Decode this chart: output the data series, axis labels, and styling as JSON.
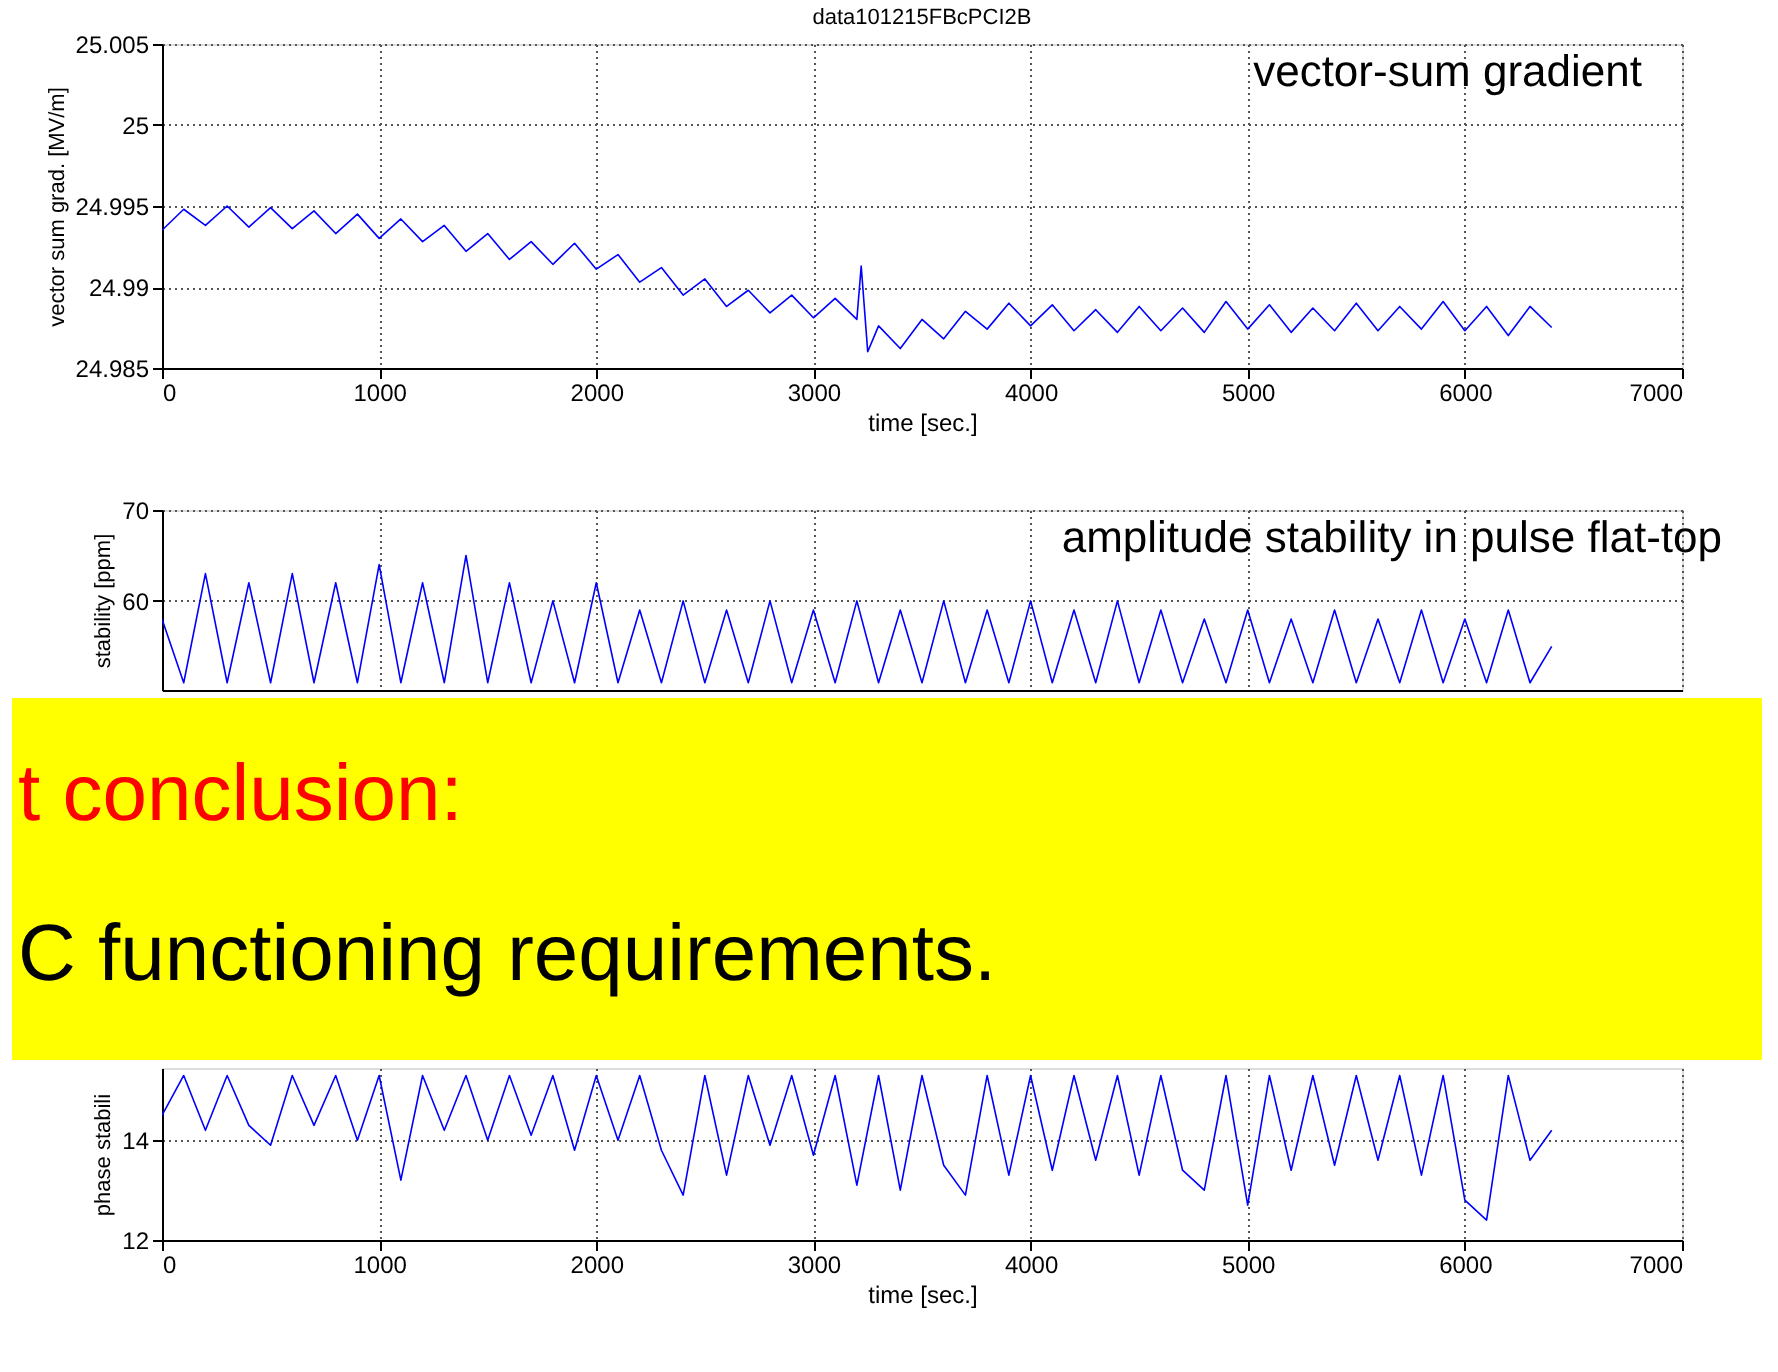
{
  "chart_data": [
    {
      "type": "line",
      "title": "data101215FBcPCI2B",
      "xlabel": "time [sec.]",
      "ylabel": "vector sum grad. [MV/m]",
      "annotations": [
        "vector-sum gradient"
      ],
      "xlim": [
        0,
        7000
      ],
      "xticks": [
        0,
        1000,
        2000,
        3000,
        4000,
        5000,
        6000,
        7000
      ],
      "ylim": [
        24.985,
        25.005
      ],
      "yticks": [
        24.985,
        24.99,
        24.995,
        25,
        25.005
      ],
      "grid": true,
      "line_style": "solid",
      "x": [
        0,
        100,
        200,
        300,
        400,
        500,
        600,
        700,
        800,
        900,
        1000,
        1100,
        1200,
        1300,
        1400,
        1500,
        1600,
        1700,
        1800,
        1900,
        2000,
        2100,
        2200,
        2300,
        2400,
        2500,
        2600,
        2700,
        2800,
        2900,
        3000,
        3100,
        3200,
        3220,
        3250,
        3300,
        3400,
        3500,
        3600,
        3700,
        3800,
        3900,
        4000,
        4100,
        4200,
        4300,
        4400,
        4500,
        4600,
        4700,
        4800,
        4900,
        5000,
        5100,
        5200,
        5300,
        5400,
        5500,
        5600,
        5700,
        5800,
        5900,
        6000,
        6100,
        6200,
        6300,
        6400
      ],
      "series": [
        {
          "color": "#0000ff",
          "values": [
            24.9935,
            24.9948,
            24.9938,
            24.995,
            24.9937,
            24.9949,
            24.9936,
            24.9947,
            24.9933,
            24.9945,
            24.993,
            24.9942,
            24.9928,
            24.9938,
            24.9922,
            24.9933,
            24.9917,
            24.9928,
            24.9914,
            24.9927,
            24.9911,
            24.992,
            24.9903,
            24.9912,
            24.9895,
            24.9905,
            24.9888,
            24.9898,
            24.9884,
            24.9895,
            24.9881,
            24.9893,
            24.988,
            24.9913,
            24.986,
            24.9876,
            24.9862,
            24.988,
            24.9868,
            24.9885,
            24.9874,
            24.989,
            24.9876,
            24.9889,
            24.9873,
            24.9886,
            24.9872,
            24.9888,
            24.9873,
            24.9887,
            24.9872,
            24.9891,
            24.9874,
            24.9889,
            24.9872,
            24.9887,
            24.9873,
            24.989,
            24.9873,
            24.9888,
            24.9874,
            24.9891,
            24.9873,
            24.9888,
            24.987,
            24.9888,
            24.9875
          ]
        }
      ]
    },
    {
      "type": "line",
      "ylabel": "stability [ppm]",
      "annotations": [
        "amplitude stability in pulse flat-top"
      ],
      "xlim": [
        0,
        7000
      ],
      "xticks": [
        0,
        1000,
        2000,
        3000,
        4000,
        5000,
        6000,
        7000
      ],
      "ylim": [
        50.2,
        70
      ],
      "yticks": [
        60,
        70
      ],
      "grid": true,
      "tick_labels": "y",
      "line_style": "solid",
      "x": [
        0,
        100,
        200,
        300,
        400,
        500,
        600,
        700,
        800,
        900,
        1000,
        1100,
        1200,
        1300,
        1400,
        1500,
        1600,
        1700,
        1800,
        1900,
        2000,
        2100,
        2200,
        2300,
        2400,
        2500,
        2600,
        2700,
        2800,
        2900,
        3000,
        3100,
        3200,
        3300,
        3400,
        3500,
        3600,
        3700,
        3800,
        3900,
        4000,
        4100,
        4200,
        4300,
        4400,
        4500,
        4600,
        4700,
        4800,
        4900,
        5000,
        5100,
        5200,
        5300,
        5400,
        5500,
        5600,
        5700,
        5800,
        5900,
        6000,
        6100,
        6200,
        6300,
        6400
      ],
      "series": [
        {
          "color": "#0000ff",
          "values": [
            58,
            51,
            63,
            51,
            62,
            51,
            63,
            51,
            62,
            51,
            64,
            51,
            62,
            51,
            65,
            51,
            62,
            51,
            60,
            51,
            62,
            51,
            59,
            51,
            60,
            51,
            59,
            51,
            60,
            51,
            59,
            51,
            60,
            51,
            59,
            51,
            60,
            51,
            59,
            51,
            60,
            51,
            59,
            51,
            60,
            51,
            59,
            51,
            58,
            51,
            59,
            51,
            58,
            51,
            59,
            51,
            58,
            51,
            59,
            51,
            58,
            51,
            59,
            51,
            55
          ]
        }
      ]
    },
    {
      "type": "other",
      "annotations": [
        "t conclusion:",
        "C functioning requirements."
      ]
    },
    {
      "type": "line",
      "xlabel": "time [sec.]",
      "ylabel": "phase stabili",
      "xlim": [
        0,
        7000
      ],
      "xticks": [
        0,
        1000,
        2000,
        3000,
        4000,
        5000,
        6000,
        7000
      ],
      "ylim": [
        12,
        15.45
      ],
      "yticks": [
        12,
        14
      ],
      "grid": true,
      "line_style": "solid",
      "x": [
        0,
        100,
        200,
        300,
        400,
        500,
        600,
        700,
        800,
        900,
        1000,
        1100,
        1200,
        1300,
        1400,
        1500,
        1600,
        1700,
        1800,
        1900,
        2000,
        2100,
        2200,
        2300,
        2400,
        2500,
        2600,
        2700,
        2800,
        2900,
        3000,
        3100,
        3200,
        3300,
        3400,
        3500,
        3600,
        3700,
        3800,
        3900,
        4000,
        4100,
        4200,
        4300,
        4400,
        4500,
        4600,
        4700,
        4800,
        4900,
        5000,
        5100,
        5200,
        5300,
        5400,
        5500,
        5600,
        5700,
        5800,
        5900,
        6000,
        6100,
        6200,
        6300,
        6400
      ],
      "series": [
        {
          "color": "#0000ff",
          "values": [
            14.5,
            15.3,
            14.2,
            15.3,
            14.3,
            13.9,
            15.3,
            14.3,
            15.3,
            14.0,
            15.3,
            13.2,
            15.3,
            14.2,
            15.3,
            14.0,
            15.3,
            14.1,
            15.3,
            13.8,
            15.3,
            14.0,
            15.3,
            13.8,
            12.9,
            15.3,
            13.3,
            15.3,
            13.9,
            15.3,
            13.7,
            15.3,
            13.1,
            15.3,
            13.0,
            15.3,
            13.5,
            12.9,
            15.3,
            13.3,
            15.3,
            13.4,
            15.3,
            13.6,
            15.3,
            13.3,
            15.3,
            13.4,
            13.0,
            15.3,
            12.7,
            15.3,
            13.4,
            15.3,
            13.5,
            15.3,
            13.6,
            15.3,
            13.3,
            15.3,
            12.8,
            12.4,
            15.3,
            13.6,
            14.2
          ]
        }
      ]
    }
  ]
}
